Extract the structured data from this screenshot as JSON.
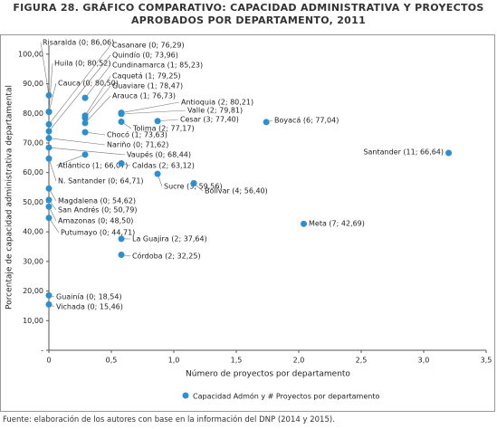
{
  "chart_data": {
    "type": "scatter",
    "title": "FIGURA 28. GRÁFICO COMPARATIVO: CAPACIDAD ADMINISTRATIVA Y PROYECTOS APROBADOS POR DEPARTAMENTO, 2011",
    "x_label": "Número de proyectos por departamento",
    "y_label": "Porcentaje de capacidad administrativa departamental",
    "source": "Fuente: elaboración de los autores con base en la información del DNP (2014 y 2015).",
    "xlim": [
      0,
      3.5
    ],
    "xticks": [
      0,
      {
        "value": 0.5,
        "label": "0,5"
      },
      {
        "value": 1,
        "label": "1,0"
      },
      {
        "value": 1.5,
        "label": "1,5"
      },
      {
        "value": 2,
        "label": "2,0"
      },
      {
        "value": 2.5,
        "label": "2,5"
      },
      {
        "value": 3,
        "label": "3,0"
      },
      {
        "value": 3.5,
        "label": "3,5"
      }
    ],
    "ylim": [
      0,
      103
    ],
    "yticks": [
      {
        "value": 0,
        "label": "-"
      },
      {
        "value": 10,
        "label": "10,00"
      },
      {
        "value": 20,
        "label": "20,00"
      },
      {
        "value": 30,
        "label": "30,00"
      },
      {
        "value": 40,
        "label": "40,00"
      },
      {
        "value": 50,
        "label": "50,00"
      },
      {
        "value": 60,
        "label": "60,00"
      },
      {
        "value": 70,
        "label": "70,00"
      },
      {
        "value": 80,
        "label": "80,00"
      },
      {
        "value": 90,
        "label": "90,00"
      },
      {
        "value": 100,
        "label": "100,00"
      }
    ],
    "grid": false,
    "legend": "bottom",
    "series": [
      {
        "name": "Capacidad Admón y # Proyectos por departamento",
        "color": "#2b8fd0",
        "x": [
          0,
          0,
          0,
          0,
          0,
          0.29,
          0.29,
          0.29,
          0.29,
          0.58,
          0.58,
          0.58,
          0.87,
          1.74,
          0.29,
          0,
          0,
          0.29,
          0.58,
          3.2,
          0,
          0.87,
          1.16,
          0,
          0,
          0,
          0,
          2.04,
          0.58,
          0.58,
          0,
          0
        ],
        "values": [
          86.06,
          80.52,
          80.5,
          76.29,
          73.96,
          85.23,
          79.25,
          78.47,
          76.73,
          80.21,
          79.81,
          77.17,
          77.4,
          77.04,
          73.63,
          71.62,
          68.44,
          66.07,
          63.12,
          66.64,
          64.71,
          59.56,
          56.4,
          54.62,
          50.79,
          48.5,
          44.71,
          42.69,
          37.64,
          32.25,
          18.54,
          15.46
        ],
        "value_labels": [
          "Risaralda (0; 86,06)",
          "Huila (0; 80,52)",
          "Cauca (0; 80,50)",
          "Casanare (0; 76,29)",
          "Quindío (0; 73,96)",
          "Cundinamarca (1; 85,23)",
          "Caquetá (1; 79,25)",
          "Guaviare (1; 78,47)",
          "Arauca (1; 76,73)",
          "Antioquia (2; 80,21)",
          "Valle (2; 79,81)",
          "Tolima (2; 77,17)",
          "Cesar (3; 77,40)",
          "Boyacá (6; 77,04)",
          "Chocó (1; 73,63)",
          "Nariño (0; 71,62)",
          "Vaupés (0; 68,44)",
          "Atlántico (1; 66,07)",
          "Caldas (2; 63,12)",
          "Santander (11; 66,64)",
          "N. Santander (0; 64,71)",
          "Sucre (3; 59,56)",
          "Bolívar (4; 56,40)",
          "Magdalena (0; 54,62)",
          "San Andrés (0; 50,79)",
          "Amazonas (0; 48,50)",
          "Putumayo (0; 44,71)",
          "Meta (7; 42,69)",
          "La Guajira (2; 37,64)",
          "Córdoba (2; 32,25)",
          "Guainía (0; 18,54)",
          "Vichada (0; 15,46)"
        ]
      }
    ]
  }
}
